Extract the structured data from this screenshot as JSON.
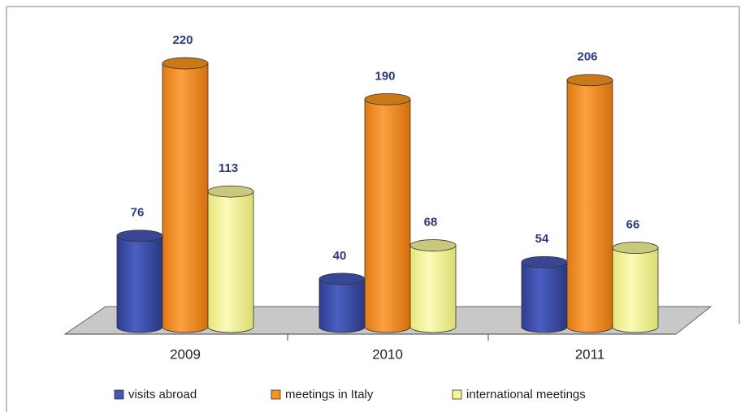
{
  "chart_data": {
    "type": "bar3d",
    "categories": [
      "2009",
      "2010",
      "2011"
    ],
    "series": [
      {
        "name": "visits abroad",
        "color": "#4457b3",
        "values": [
          76,
          40,
          54
        ]
      },
      {
        "name": "meetings in Italy",
        "color": "#f7941d",
        "values": [
          220,
          190,
          206
        ]
      },
      {
        "name": "international meetings",
        "color": "#f5f59a",
        "values": [
          113,
          68,
          66
        ]
      }
    ]
  }
}
